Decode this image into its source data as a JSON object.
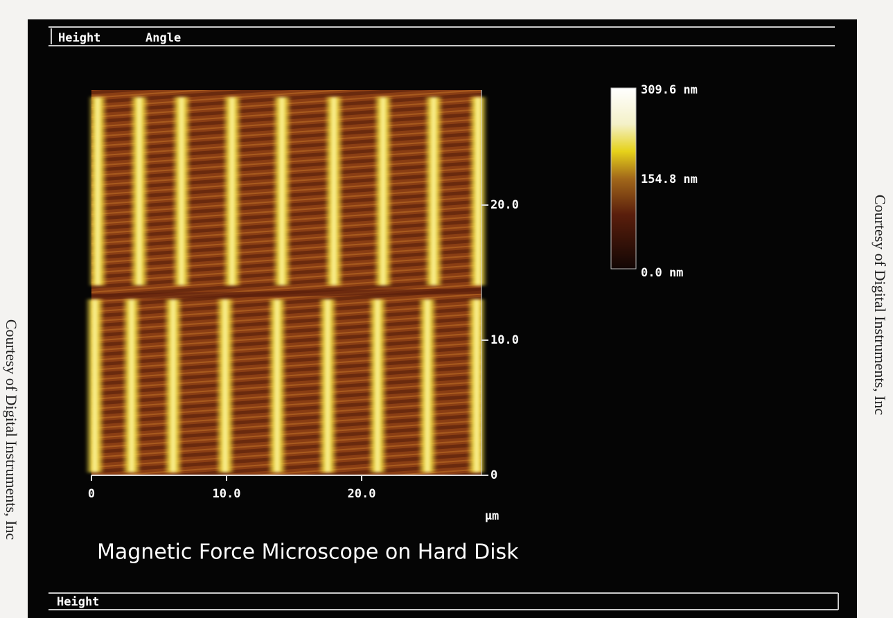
{
  "header": {
    "tabs": [
      "Height",
      "Angle"
    ]
  },
  "image": {
    "y_axis": {
      "ticks": [
        {
          "value": 20,
          "label": "20.0"
        },
        {
          "value": 10,
          "label": "10.0"
        },
        0
      ]
    },
    "x_axis": {
      "ticks": [
        0,
        {
          "value": 10,
          "label": "10.0"
        },
        {
          "value": 20,
          "label": "20.0"
        }
      ],
      "unit": "µm"
    }
  },
  "colorbar": {
    "labels": [
      "309.6 nm",
      "154.8 nm",
      "0.0 nm"
    ]
  },
  "caption": "Magnetic Force Microscope on Hard Disk",
  "footer": {
    "tab": "Height"
  },
  "credit": "Courtesy of Digital Instruments, Inc"
}
